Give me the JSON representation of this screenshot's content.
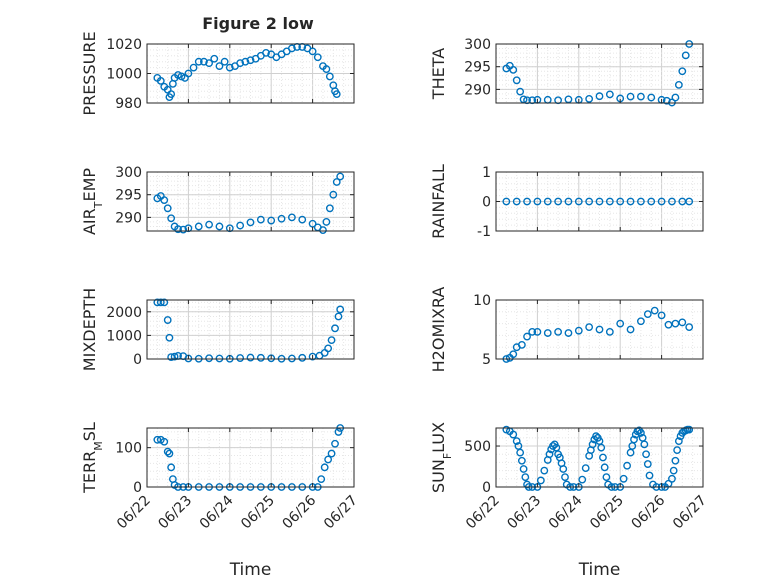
{
  "figure": {
    "title": "Figure 2 low",
    "marker_color": "#0072BD",
    "grid": true
  },
  "chart_data": [
    {
      "type": "scatter",
      "name": "pressure-panel",
      "ylabel": "PRESSURE",
      "ylabel_sub": "",
      "ylabel_tail": "",
      "ylim": [
        980,
        1020
      ],
      "yticks": [
        980,
        1000,
        1020
      ],
      "xticks": [
        "06/22",
        "06/23",
        "06/24",
        "06/25",
        "06/26",
        "06/27"
      ],
      "show_xticks": false,
      "xlabel": "",
      "series": [
        {
          "x": [
            "06/22 06:00",
            "06/22 08:00",
            "06/22 10:00",
            "06/22 12:00",
            "06/22 13:00",
            "06/22 14:00",
            "06/22 15:00",
            "06/22 16:00",
            "06/22 18:00",
            "06/22 20:00",
            "06/22 22:00",
            "06/23 00:00",
            "06/23 03:00",
            "06/23 06:00",
            "06/23 09:00",
            "06/23 12:00",
            "06/23 15:00",
            "06/23 18:00",
            "06/23 21:00",
            "06/24 00:00",
            "06/24 03:00",
            "06/24 06:00",
            "06/24 09:00",
            "06/24 12:00",
            "06/24 15:00",
            "06/24 18:00",
            "06/24 21:00",
            "06/25 00:00",
            "06/25 03:00",
            "06/25 06:00",
            "06/25 09:00",
            "06/25 12:00",
            "06/25 15:00",
            "06/25 18:00",
            "06/25 21:00",
            "06/26 00:00",
            "06/26 03:00",
            "06/26 06:00",
            "06/26 08:00",
            "06/26 10:00",
            "06/26 12:00",
            "06/26 13:00",
            "06/26 14:00"
          ],
          "y": [
            997,
            995,
            991,
            989,
            984,
            986,
            993,
            997,
            999,
            998,
            997,
            1000,
            1004,
            1008,
            1008,
            1007,
            1010,
            1005,
            1008,
            1004,
            1005,
            1007,
            1008,
            1009,
            1010,
            1012,
            1014,
            1013,
            1011,
            1013,
            1015,
            1017,
            1018,
            1018,
            1017,
            1015,
            1011,
            1005,
            1003,
            998,
            992,
            988,
            986
          ]
        }
      ]
    },
    {
      "type": "scatter",
      "name": "theta-panel",
      "ylabel": "THETA",
      "ylabel_sub": "",
      "ylabel_tail": "",
      "ylim": [
        287,
        300
      ],
      "yticks": [
        290,
        295,
        300
      ],
      "xticks": [
        "06/22",
        "06/23",
        "06/24",
        "06/25",
        "06/26",
        "06/27"
      ],
      "show_xticks": false,
      "xlabel": "",
      "series": [
        {
          "x": [
            "06/22 06:00",
            "06/22 08:00",
            "06/22 10:00",
            "06/22 12:00",
            "06/22 14:00",
            "06/22 16:00",
            "06/22 18:00",
            "06/22 21:00",
            "06/23 00:00",
            "06/23 06:00",
            "06/23 12:00",
            "06/23 18:00",
            "06/24 00:00",
            "06/24 06:00",
            "06/24 12:00",
            "06/24 18:00",
            "06/25 00:00",
            "06/25 06:00",
            "06/25 12:00",
            "06/25 18:00",
            "06/26 00:00",
            "06/26 03:00",
            "06/26 06:00",
            "06/26 08:00",
            "06/26 10:00",
            "06/26 12:00",
            "06/26 14:00",
            "06/26 16:00"
          ],
          "y": [
            294.6,
            295.2,
            294.3,
            292.0,
            289.5,
            287.8,
            287.6,
            287.6,
            287.7,
            287.7,
            287.6,
            287.8,
            287.7,
            287.9,
            288.5,
            288.9,
            288.0,
            288.4,
            288.4,
            288.2,
            287.7,
            287.5,
            287.1,
            288.2,
            291.0,
            294.0,
            297.5,
            300.0
          ]
        }
      ]
    },
    {
      "type": "scatter",
      "name": "air-temp-panel",
      "ylabel": "AIR",
      "ylabel_sub": "T",
      "ylabel_tail": "EMP",
      "ylim": [
        287,
        300
      ],
      "yticks": [
        290,
        295,
        300
      ],
      "xticks": [
        "06/22",
        "06/23",
        "06/24",
        "06/25",
        "06/26",
        "06/27"
      ],
      "show_xticks": false,
      "xlabel": "",
      "series": [
        {
          "x": [
            "06/22 06:00",
            "06/22 08:00",
            "06/22 10:00",
            "06/22 12:00",
            "06/22 14:00",
            "06/22 16:00",
            "06/22 18:00",
            "06/22 21:00",
            "06/23 00:00",
            "06/23 06:00",
            "06/23 12:00",
            "06/23 18:00",
            "06/24 00:00",
            "06/24 06:00",
            "06/24 12:00",
            "06/24 18:00",
            "06/25 00:00",
            "06/25 06:00",
            "06/25 12:00",
            "06/25 18:00",
            "06/26 00:00",
            "06/26 03:00",
            "06/26 06:00",
            "06/26 08:00",
            "06/26 10:00",
            "06/26 12:00",
            "06/26 14:00",
            "06/26 16:00"
          ],
          "y": [
            294.2,
            294.7,
            293.8,
            292.0,
            289.8,
            288.0,
            287.4,
            287.3,
            287.6,
            288.0,
            288.4,
            288.0,
            287.6,
            288.2,
            288.9,
            289.5,
            289.3,
            289.7,
            290.0,
            289.5,
            288.6,
            287.8,
            287.2,
            289.0,
            292.0,
            295.0,
            297.8,
            299.0
          ]
        }
      ]
    },
    {
      "type": "scatter",
      "name": "rainfall-panel",
      "ylabel": "RAINFALL",
      "ylabel_sub": "",
      "ylabel_tail": "",
      "ylim": [
        -1,
        1
      ],
      "yticks": [
        -1,
        0,
        1
      ],
      "xticks": [
        "06/22",
        "06/23",
        "06/24",
        "06/25",
        "06/26",
        "06/27"
      ],
      "show_xticks": false,
      "xlabel": "",
      "series": [
        {
          "x": [
            "06/22 06:00",
            "06/22 12:00",
            "06/22 18:00",
            "06/23 00:00",
            "06/23 06:00",
            "06/23 12:00",
            "06/23 18:00",
            "06/24 00:00",
            "06/24 06:00",
            "06/24 12:00",
            "06/24 18:00",
            "06/25 00:00",
            "06/25 06:00",
            "06/25 12:00",
            "06/25 18:00",
            "06/26 00:00",
            "06/26 06:00",
            "06/26 12:00",
            "06/26 16:00"
          ],
          "y": [
            0,
            0,
            0,
            0,
            0,
            0,
            0,
            0,
            0,
            0,
            0,
            0,
            0,
            0,
            0,
            0,
            0,
            0,
            0
          ]
        }
      ]
    },
    {
      "type": "scatter",
      "name": "mixdepth-panel",
      "ylabel": "MIXDEPTH",
      "ylabel_sub": "",
      "ylabel_tail": "",
      "ylim": [
        0,
        2500
      ],
      "yticks": [
        0,
        1000,
        2000
      ],
      "xticks": [
        "06/22",
        "06/23",
        "06/24",
        "06/25",
        "06/26",
        "06/27"
      ],
      "show_xticks": false,
      "xlabel": "",
      "series": [
        {
          "x": [
            "06/22 06:00",
            "06/22 08:00",
            "06/22 10:00",
            "06/22 12:00",
            "06/22 13:00",
            "06/22 14:00",
            "06/22 16:00",
            "06/22 18:00",
            "06/22 21:00",
            "06/23 00:00",
            "06/23 06:00",
            "06/23 12:00",
            "06/23 18:00",
            "06/24 00:00",
            "06/24 06:00",
            "06/24 12:00",
            "06/24 18:00",
            "06/25 00:00",
            "06/25 06:00",
            "06/25 12:00",
            "06/25 18:00",
            "06/26 00:00",
            "06/26 04:00",
            "06/26 07:00",
            "06/26 09:00",
            "06/26 11:00",
            "06/26 13:00",
            "06/26 15:00",
            "06/26 16:00"
          ],
          "y": [
            2400,
            2400,
            2400,
            1650,
            900,
            80,
            100,
            130,
            120,
            20,
            10,
            30,
            20,
            10,
            40,
            60,
            50,
            30,
            10,
            20,
            50,
            100,
            140,
            260,
            450,
            800,
            1300,
            1800,
            2100
          ]
        }
      ]
    },
    {
      "type": "scatter",
      "name": "h2o-mix-ratio-panel",
      "ylabel": "H2OMIXRA",
      "ylabel_sub": "",
      "ylabel_tail": "",
      "ylim": [
        5,
        10
      ],
      "yticks": [
        5,
        10
      ],
      "xticks": [
        "06/22",
        "06/23",
        "06/24",
        "06/25",
        "06/26",
        "06/27"
      ],
      "show_xticks": false,
      "xlabel": "",
      "series": [
        {
          "x": [
            "06/22 06:00",
            "06/22 08:00",
            "06/22 10:00",
            "06/22 12:00",
            "06/22 15:00",
            "06/22 18:00",
            "06/22 21:00",
            "06/23 00:00",
            "06/23 06:00",
            "06/23 12:00",
            "06/23 18:00",
            "06/24 00:00",
            "06/24 06:00",
            "06/24 12:00",
            "06/24 18:00",
            "06/25 00:00",
            "06/25 06:00",
            "06/25 12:00",
            "06/25 16:00",
            "06/25 20:00",
            "06/26 00:00",
            "06/26 04:00",
            "06/26 08:00",
            "06/26 12:00",
            "06/26 16:00"
          ],
          "y": [
            5.0,
            5.1,
            5.4,
            6.0,
            6.2,
            6.9,
            7.3,
            7.3,
            7.2,
            7.3,
            7.2,
            7.4,
            7.7,
            7.5,
            7.3,
            8.0,
            7.5,
            8.2,
            8.8,
            9.1,
            8.7,
            7.9,
            8.0,
            8.1,
            7.7
          ]
        }
      ]
    },
    {
      "type": "scatter",
      "name": "terrain-msl-panel",
      "ylabel": "TERR",
      "ylabel_sub": "M",
      "ylabel_tail": "SL",
      "ylim": [
        0,
        150
      ],
      "yticks": [
        0,
        100
      ],
      "xticks": [
        "06/22",
        "06/23",
        "06/24",
        "06/25",
        "06/26",
        "06/27"
      ],
      "show_xticks": true,
      "xlabel": "Time",
      "series": [
        {
          "x": [
            "06/22 06:00",
            "06/22 08:00",
            "06/22 10:00",
            "06/22 12:00",
            "06/22 13:00",
            "06/22 14:00",
            "06/22 15:00",
            "06/22 16:00",
            "06/22 18:00",
            "06/22 21:00",
            "06/23 00:00",
            "06/23 06:00",
            "06/23 12:00",
            "06/23 18:00",
            "06/24 00:00",
            "06/24 06:00",
            "06/24 12:00",
            "06/24 18:00",
            "06/25 00:00",
            "06/25 06:00",
            "06/25 12:00",
            "06/25 18:00",
            "06/26 00:00",
            "06/26 03:00",
            "06/26 05:00",
            "06/26 07:00",
            "06/26 09:00",
            "06/26 11:00",
            "06/26 13:00",
            "06/26 15:00",
            "06/26 16:00"
          ],
          "y": [
            120,
            120,
            115,
            90,
            85,
            50,
            20,
            5,
            0,
            0,
            0,
            0,
            0,
            0,
            0,
            0,
            0,
            0,
            0,
            0,
            0,
            0,
            0,
            0,
            20,
            50,
            70,
            85,
            110,
            140,
            150
          ]
        }
      ]
    },
    {
      "type": "scatter",
      "name": "sun-flux-panel",
      "ylabel": "SUN",
      "ylabel_sub": "F",
      "ylabel_tail": "LUX",
      "ylim": [
        0,
        720
      ],
      "yticks": [
        0,
        500
      ],
      "xticks": [
        "06/22",
        "06/23",
        "06/24",
        "06/25",
        "06/26",
        "06/27"
      ],
      "show_xticks": true,
      "xlabel": "Time",
      "series": [
        {
          "x": [
            "06/22 06:00",
            "06/22 08:00",
            "06/22 10:00",
            "06/22 12:00",
            "06/22 13:00",
            "06/22 14:00",
            "06/22 15:00",
            "06/22 16:00",
            "06/22 17:00",
            "06/22 18:00",
            "06/22 19:00",
            "06/22 21:00",
            "06/23 00:00",
            "06/23 02:00",
            "06/23 04:00",
            "06/23 06:00",
            "06/23 07:00",
            "06/23 08:00",
            "06/23 09:00",
            "06/23 10:00",
            "06/23 11:00",
            "06/23 12:00",
            "06/23 13:00",
            "06/23 14:00",
            "06/23 15:00",
            "06/23 16:00",
            "06/23 17:00",
            "06/23 19:00",
            "06/23 21:00",
            "06/24 00:00",
            "06/24 02:00",
            "06/24 04:00",
            "06/24 06:00",
            "06/24 07:00",
            "06/24 08:00",
            "06/24 09:00",
            "06/24 10:00",
            "06/24 11:00",
            "06/24 12:00",
            "06/24 13:00",
            "06/24 14:00",
            "06/24 15:00",
            "06/24 16:00",
            "06/24 17:00",
            "06/24 19:00",
            "06/24 21:00",
            "06/25 00:00",
            "06/25 02:00",
            "06/25 04:00",
            "06/25 06:00",
            "06/25 07:00",
            "06/25 08:00",
            "06/25 09:00",
            "06/25 10:00",
            "06/25 11:00",
            "06/25 12:00",
            "06/25 13:00",
            "06/25 14:00",
            "06/25 15:00",
            "06/25 16:00",
            "06/25 17:00",
            "06/25 19:00",
            "06/25 21:00",
            "06/26 00:00",
            "06/26 02:00",
            "06/26 04:00",
            "06/26 06:00",
            "06/26 07:00",
            "06/26 08:00",
            "06/26 09:00",
            "06/26 10:00",
            "06/26 11:00",
            "06/26 12:00",
            "06/26 13:00",
            "06/26 14:00",
            "06/26 15:00",
            "06/26 16:00"
          ],
          "y": [
            700,
            680,
            640,
            560,
            500,
            420,
            320,
            220,
            120,
            30,
            0,
            0,
            0,
            80,
            200,
            330,
            400,
            460,
            500,
            520,
            480,
            400,
            360,
            290,
            220,
            120,
            30,
            0,
            0,
            0,
            90,
            230,
            380,
            450,
            520,
            580,
            620,
            600,
            560,
            480,
            360,
            240,
            120,
            30,
            0,
            0,
            0,
            100,
            260,
            420,
            500,
            580,
            640,
            680,
            690,
            660,
            600,
            520,
            400,
            280,
            140,
            30,
            0,
            0,
            0,
            40,
            100,
            200,
            320,
            450,
            560,
            620,
            660,
            680,
            690,
            700,
            700
          ]
        }
      ]
    }
  ]
}
